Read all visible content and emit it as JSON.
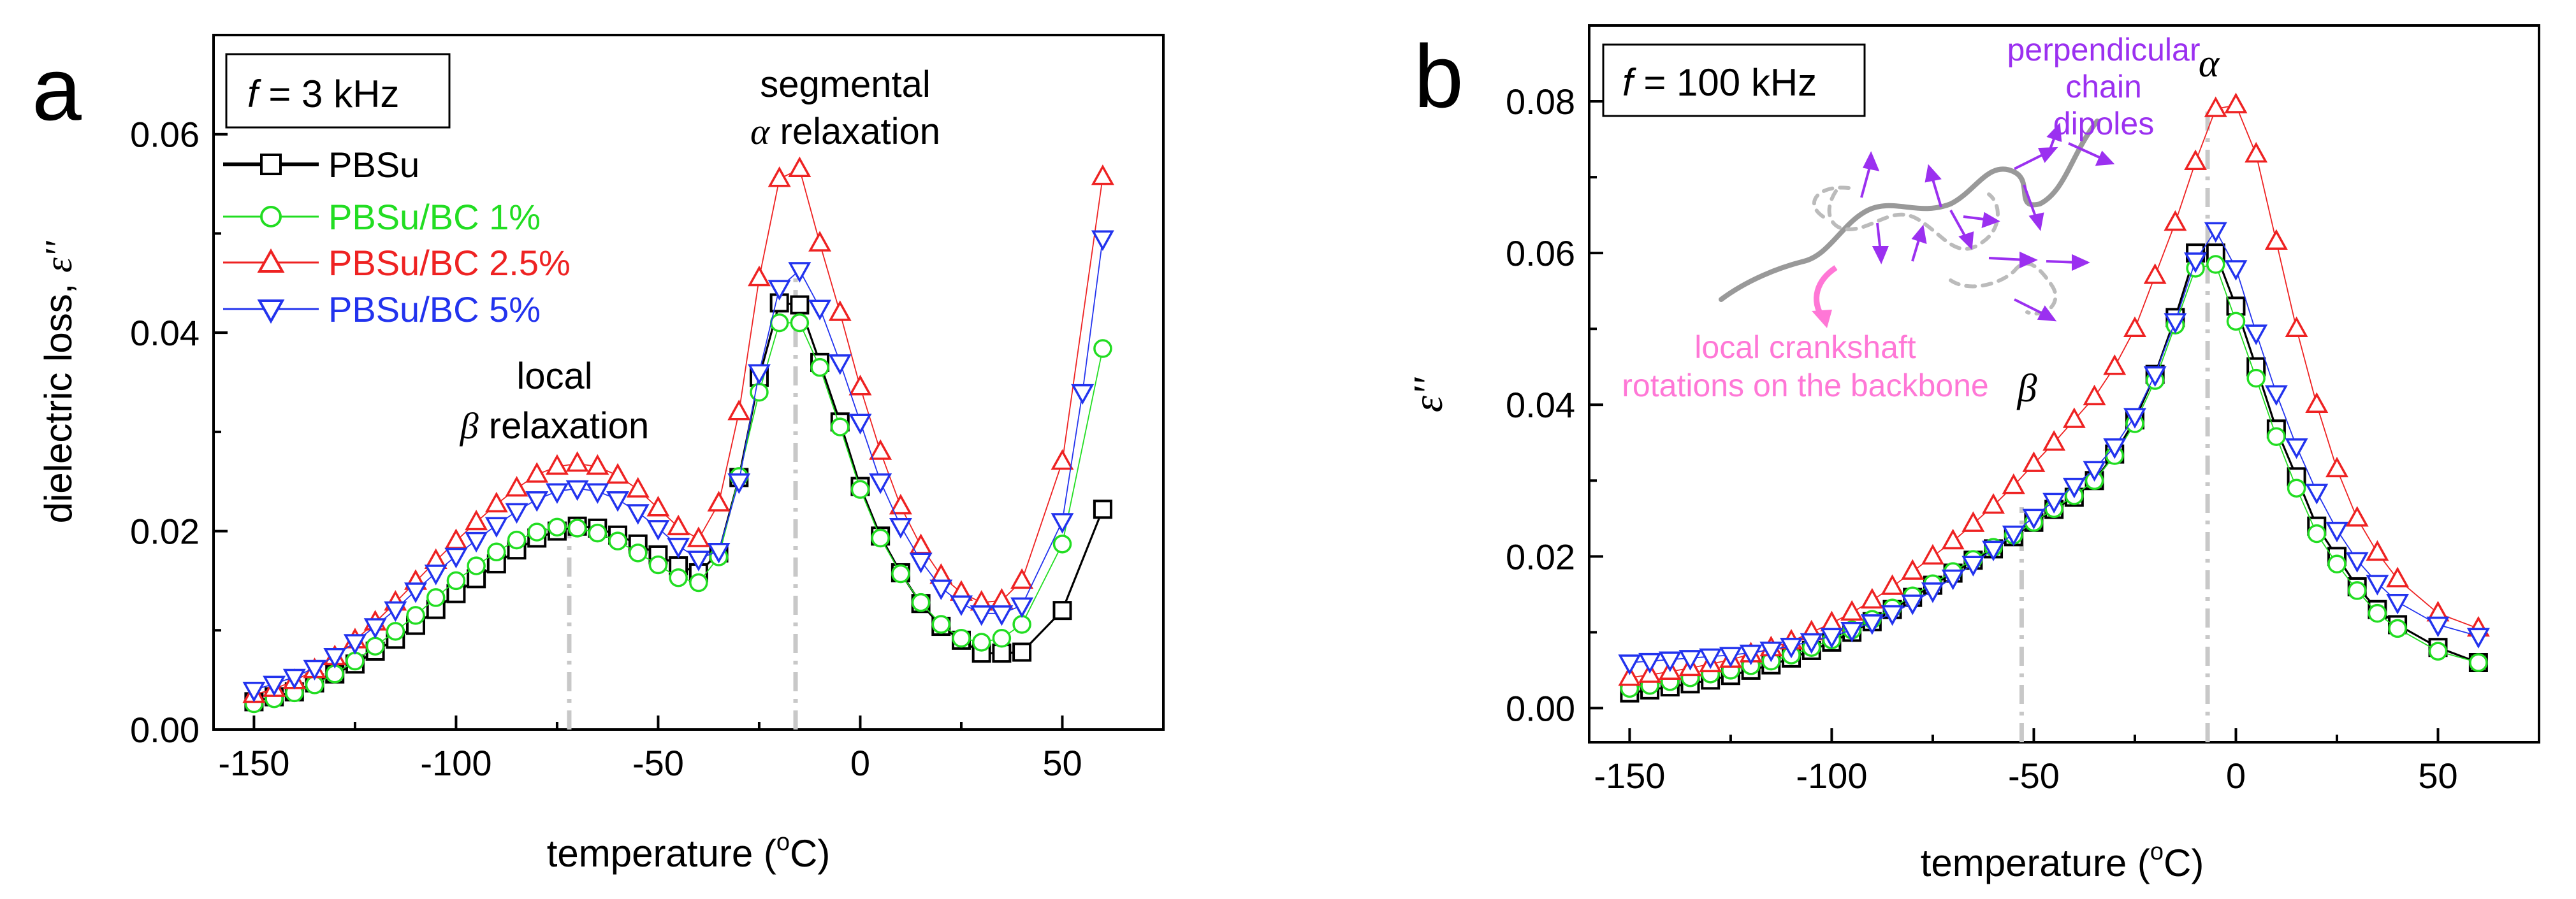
{
  "figure": {
    "panels": [
      "a",
      "b"
    ]
  },
  "chart_data": [
    {
      "type": "line",
      "panel_label": "a",
      "condition": "f = 3 kHz",
      "condition_var": "f",
      "condition_value": " = 3 kHz",
      "xlabel": "temperature (",
      "xlabel_sup": "o",
      "xlabel_end": "C)",
      "ylabel": "dielectric loss, ",
      "ylabel_sym": "ε''",
      "xlim": [
        -160,
        75
      ],
      "ylim": [
        0.0,
        0.07
      ],
      "xticks": [
        -150,
        -100,
        -50,
        0,
        50
      ],
      "xtick_labels": [
        "-150",
        "-100",
        "-50",
        "0",
        "50"
      ],
      "yticks": [
        0.0,
        0.02,
        0.04,
        0.06
      ],
      "ytick_labels": [
        "0.00",
        "0.02",
        "0.04",
        "0.06"
      ],
      "x": [
        -150,
        -145,
        -140,
        -135,
        -130,
        -125,
        -120,
        -115,
        -110,
        -105,
        -100,
        -95,
        -90,
        -85,
        -80,
        -75,
        -70,
        -65,
        -60,
        -55,
        -50,
        -45,
        -40,
        -35,
        -30,
        -25,
        -20,
        -15,
        -10,
        -5,
        0,
        5,
        10,
        15,
        20,
        25,
        30,
        35,
        40,
        45,
        50,
        55,
        60
      ],
      "series": [
        {
          "name": "PBSu",
          "color": "#000000",
          "marker": "square",
          "stroke": 3.2,
          "values": [
            0.0028,
            0.0033,
            0.0038,
            0.0047,
            0.0056,
            0.0066,
            0.0079,
            0.0091,
            0.0105,
            0.0121,
            0.0137,
            0.0152,
            0.0167,
            0.0181,
            0.0193,
            0.02,
            0.0205,
            0.0203,
            0.0196,
            0.0187,
            0.0176,
            0.0165,
            0.0158,
            0.0178,
            0.0254,
            0.0355,
            0.043,
            0.0428,
            0.037,
            0.031,
            0.0245,
            0.0195,
            0.0158,
            0.0127,
            0.0104,
            0.009,
            0.0077,
            0.0077,
            0.0078,
            null,
            0.012,
            null,
            0.0222
          ]
        },
        {
          "name": "PBSu/BC 1%",
          "color": "#22dd22",
          "marker": "circle",
          "stroke": 1.8,
          "values": [
            0.0026,
            0.0031,
            0.0037,
            0.0045,
            0.0056,
            0.0069,
            0.0084,
            0.0099,
            0.0115,
            0.0133,
            0.015,
            0.0165,
            0.0179,
            0.0191,
            0.0199,
            0.0204,
            0.0203,
            0.0198,
            0.019,
            0.0178,
            0.0166,
            0.0153,
            0.0148,
            0.0174,
            0.0255,
            0.034,
            0.041,
            0.041,
            0.0365,
            0.0305,
            0.0242,
            0.0193,
            0.0157,
            0.0128,
            0.0106,
            0.0092,
            0.0088,
            0.0092,
            0.0106,
            null,
            0.0187,
            null,
            0.0384
          ]
        },
        {
          "name": "PBSu/BC 2.5%",
          "color": "#ee2222",
          "marker": "triangle-up",
          "stroke": 1.8,
          "values": [
            0.0035,
            0.0041,
            0.0049,
            0.006,
            0.0073,
            0.009,
            0.0108,
            0.0128,
            0.0149,
            0.017,
            0.019,
            0.0209,
            0.0227,
            0.0243,
            0.0257,
            0.0265,
            0.0268,
            0.0265,
            0.0256,
            0.0242,
            0.0223,
            0.0204,
            0.0192,
            0.0228,
            0.032,
            0.0455,
            0.0555,
            0.0565,
            0.049,
            0.042,
            0.0345,
            0.028,
            0.0225,
            0.0185,
            0.0155,
            0.0138,
            0.0128,
            0.013,
            0.015,
            null,
            0.027,
            null,
            0.0557
          ]
        },
        {
          "name": "PBSu/BC 5%",
          "color": "#2233ee",
          "marker": "triangle-down",
          "stroke": 1.8,
          "values": [
            0.004,
            0.0046,
            0.0053,
            0.0062,
            0.0074,
            0.0088,
            0.0104,
            0.0121,
            0.014,
            0.0158,
            0.0175,
            0.0191,
            0.0206,
            0.022,
            0.0232,
            0.024,
            0.0243,
            0.024,
            0.0232,
            0.0219,
            0.0203,
            0.0185,
            0.0172,
            0.018,
            0.025,
            0.036,
            0.0445,
            0.0463,
            0.0425,
            0.037,
            0.031,
            0.025,
            0.0205,
            0.017,
            0.0143,
            0.0127,
            0.0117,
            0.0117,
            0.0125,
            null,
            0.021,
            0.034,
            0.0495
          ]
        }
      ],
      "vlines": [
        {
          "x": -72,
          "y_top": 0.0205
        },
        {
          "x": -16,
          "y_top": 0.0465
        }
      ],
      "annotations": [
        {
          "text": "segmental",
          "x": -15,
          "y": 0.0648
        },
        {
          "sym": "α",
          "text": " relaxation",
          "x": -15,
          "y": 0.0594
        },
        {
          "text": "local",
          "x": -71,
          "y": 0.0358
        },
        {
          "sym": "β",
          "text": " relaxation",
          "x": -71,
          "y": 0.0304
        }
      ]
    },
    {
      "type": "line",
      "panel_label": "b",
      "condition": "f = 100 kHz",
      "condition_var": "f",
      "condition_value": " = 100 kHz",
      "xlabel": "temperature (",
      "xlabel_sup": "o",
      "xlabel_end": "C)",
      "ylabel": "",
      "ylabel_sym": "ε''",
      "xlim": [
        -160,
        75
      ],
      "ylim": [
        -0.0045,
        0.09
      ],
      "xticks": [
        -150,
        -100,
        -50,
        0,
        50
      ],
      "xtick_labels": [
        "-150",
        "-100",
        "-50",
        "0",
        "50"
      ],
      "yticks": [
        0.0,
        0.02,
        0.04,
        0.06,
        0.08
      ],
      "ytick_labels": [
        "0.00",
        "0.02",
        "0.04",
        "0.06",
        "0.08"
      ],
      "x": [
        -150,
        -145,
        -140,
        -135,
        -130,
        -125,
        -120,
        -115,
        -110,
        -105,
        -100,
        -95,
        -90,
        -85,
        -80,
        -75,
        -70,
        -65,
        -60,
        -55,
        -50,
        -45,
        -40,
        -35,
        -30,
        -25,
        -20,
        -15,
        -10,
        -5,
        0,
        5,
        10,
        15,
        20,
        25,
        30,
        35,
        40,
        45,
        50,
        55,
        60
      ],
      "series": [
        {
          "name": "PBSu",
          "color": "#000000",
          "marker": "square",
          "stroke": 3.2,
          "values": [
            0.002,
            0.0024,
            0.0028,
            0.0032,
            0.0037,
            0.0043,
            0.005,
            0.0057,
            0.0066,
            0.0076,
            0.0087,
            0.01,
            0.0114,
            0.013,
            0.0146,
            0.0162,
            0.0178,
            0.0195,
            0.021,
            0.0226,
            0.0245,
            0.0262,
            0.0278,
            0.03,
            0.0335,
            0.038,
            0.044,
            0.0515,
            0.06,
            0.06,
            0.053,
            0.045,
            0.0368,
            0.0305,
            0.024,
            0.02,
            0.016,
            0.013,
            0.011,
            null,
            0.008,
            null,
            0.006
          ]
        },
        {
          "name": "PBSu/BC 1%",
          "color": "#22dd22",
          "marker": "circle",
          "stroke": 1.8,
          "values": [
            0.0026,
            0.003,
            0.0035,
            0.004,
            0.0045,
            0.005,
            0.0056,
            0.0062,
            0.007,
            0.008,
            0.009,
            0.0103,
            0.0117,
            0.0132,
            0.0148,
            0.0164,
            0.018,
            0.0196,
            0.0212,
            0.0228,
            0.0245,
            0.0263,
            0.028,
            0.03,
            0.0333,
            0.0375,
            0.0432,
            0.0505,
            0.058,
            0.0585,
            0.051,
            0.0435,
            0.0358,
            0.029,
            0.023,
            0.019,
            0.0155,
            0.0125,
            0.0105,
            null,
            0.0075,
            null,
            0.006
          ]
        },
        {
          "name": "PBSu/BC 2.5%",
          "color": "#ee2222",
          "marker": "triangle-up",
          "stroke": 1.8,
          "values": [
            0.004,
            0.0044,
            0.0048,
            0.0053,
            0.0058,
            0.0064,
            0.0071,
            0.0079,
            0.0088,
            0.01,
            0.0112,
            0.0126,
            0.0142,
            0.016,
            0.018,
            0.02,
            0.022,
            0.0243,
            0.0267,
            0.0293,
            0.0322,
            0.035,
            0.038,
            0.041,
            0.045,
            0.05,
            0.057,
            0.064,
            0.072,
            0.079,
            0.0795,
            0.073,
            0.0615,
            0.05,
            0.04,
            0.0315,
            0.025,
            0.0205,
            0.017,
            null,
            0.0125,
            null,
            0.0105
          ]
        },
        {
          "name": "PBSu/BC 5%",
          "color": "#2233ee",
          "marker": "triangle-down",
          "stroke": 1.8,
          "values": [
            0.006,
            0.0062,
            0.0064,
            0.0066,
            0.0068,
            0.007,
            0.0073,
            0.0077,
            0.0082,
            0.0088,
            0.0095,
            0.0103,
            0.0113,
            0.0125,
            0.0139,
            0.0155,
            0.0172,
            0.019,
            0.021,
            0.023,
            0.0252,
            0.0273,
            0.0293,
            0.0315,
            0.0345,
            0.0385,
            0.044,
            0.051,
            0.059,
            0.063,
            0.058,
            0.0495,
            0.0415,
            0.0345,
            0.0285,
            0.0235,
            0.0195,
            0.0165,
            0.014,
            null,
            0.011,
            null,
            0.0095
          ]
        }
      ],
      "vlines": [
        {
          "x": -53,
          "y_top": 0.0265
        },
        {
          "x": -7,
          "y_top": 0.0795
        }
      ],
      "annotations": [
        {
          "sym": "β",
          "text": "",
          "x": -50,
          "y": 0.0385
        },
        {
          "sym": "α",
          "text": "",
          "x": -6,
          "y": 0.0838
        }
      ],
      "inset_labels": {
        "perpendicular": [
          "perpendicular",
          "chain",
          "dipoles"
        ],
        "crankshaft": [
          "local crankshaft",
          "rotations on the backbone"
        ],
        "perpendicular_color": "#9b30f0",
        "crankshaft_color": "#ff77d6"
      }
    }
  ]
}
